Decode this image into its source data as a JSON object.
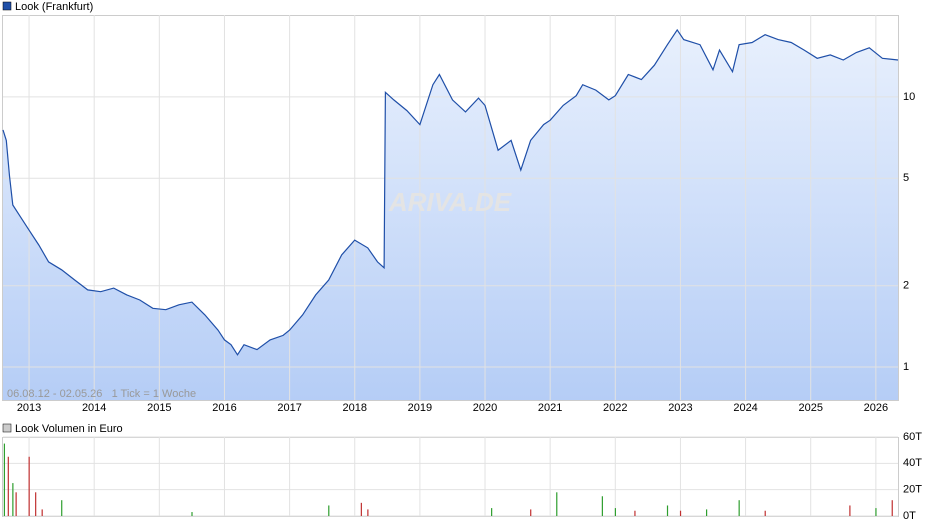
{
  "chart_data": [
    {
      "type": "line",
      "title": "Look (Frankfurt)",
      "color": "#1f4fa8",
      "fill_top": "#e8f0fd",
      "fill_bottom": "#b5cdf6",
      "note": "06.08.12 - 02.05.26   1 Tick = 1 Woche",
      "watermark": "ARIVA.DE",
      "log_scale": true,
      "grid": true,
      "x": [
        2012.6,
        2012.65,
        2012.7,
        2012.75,
        2012.85,
        2013.0,
        2013.15,
        2013.3,
        2013.5,
        2013.7,
        2013.9,
        2014.1,
        2014.3,
        2014.5,
        2014.7,
        2014.9,
        2015.1,
        2015.3,
        2015.5,
        2015.7,
        2015.9,
        2016.0,
        2016.1,
        2016.2,
        2016.3,
        2016.5,
        2016.7,
        2016.9,
        2017.0,
        2017.2,
        2017.4,
        2017.6,
        2017.8,
        2018.0,
        2018.2,
        2018.35,
        2018.45,
        2018.47,
        2018.6,
        2018.8,
        2019.0,
        2019.2,
        2019.3,
        2019.5,
        2019.7,
        2019.9,
        2020.0,
        2020.2,
        2020.4,
        2020.55,
        2020.7,
        2020.9,
        2021.0,
        2021.2,
        2021.4,
        2021.5,
        2021.7,
        2021.9,
        2022.0,
        2022.2,
        2022.4,
        2022.6,
        2022.8,
        2022.95,
        2023.05,
        2023.3,
        2023.5,
        2023.6,
        2023.8,
        2023.9,
        2024.1,
        2024.3,
        2024.5,
        2024.7,
        2024.9,
        2025.1,
        2025.3,
        2025.5,
        2025.7,
        2025.9,
        2026.1,
        2026.34
      ],
      "values": [
        7.55,
        6.9,
        5.1,
        3.98,
        3.65,
        3.21,
        2.83,
        2.45,
        2.29,
        2.1,
        1.93,
        1.9,
        1.96,
        1.85,
        1.77,
        1.65,
        1.63,
        1.7,
        1.74,
        1.56,
        1.37,
        1.26,
        1.21,
        1.11,
        1.21,
        1.16,
        1.26,
        1.31,
        1.37,
        1.56,
        1.85,
        2.1,
        2.6,
        2.95,
        2.76,
        2.45,
        2.33,
        10.4,
        9.75,
        8.9,
        7.9,
        11.1,
        12.1,
        9.75,
        8.8,
        9.9,
        9.3,
        6.35,
        6.9,
        5.36,
        6.9,
        7.9,
        8.2,
        9.3,
        10.1,
        11.1,
        10.6,
        9.75,
        10.1,
        12.1,
        11.6,
        13.1,
        15.6,
        17.7,
        16.3,
        15.6,
        12.6,
        14.9,
        12.4,
        15.6,
        15.9,
        17.0,
        16.3,
        15.9,
        14.9,
        13.9,
        14.3,
        13.7,
        14.6,
        15.2,
        13.9,
        13.7
      ],
      "xlim": [
        2012.6,
        2026.34
      ],
      "xticks": [
        2013,
        2014,
        2015,
        2016,
        2017,
        2018,
        2019,
        2020,
        2021,
        2022,
        2023,
        2024,
        2025,
        2026
      ],
      "ylim": [
        0.755,
        20.1
      ],
      "yticks": [
        1,
        2,
        5,
        10
      ]
    },
    {
      "type": "bar",
      "title": "Look Volumen in Euro",
      "grid": true,
      "x": [
        2012.62,
        2012.68,
        2012.75,
        2012.8,
        2013.0,
        2013.1,
        2013.2,
        2013.5,
        2015.5,
        2017.6,
        2018.1,
        2018.2,
        2020.1,
        2020.7,
        2021.1,
        2021.8,
        2022.0,
        2022.3,
        2022.8,
        2023.0,
        2023.4,
        2023.9,
        2024.3,
        2025.6,
        2026.0,
        2026.25
      ],
      "values": [
        55,
        45,
        25,
        18,
        45,
        18,
        5,
        12,
        3,
        8,
        10,
        5,
        6,
        5,
        18,
        15,
        6,
        4,
        8,
        4,
        5,
        12,
        4,
        8,
        6,
        12
      ],
      "colors": [
        "#2e9e2e",
        "#c03030",
        "#2e9e2e",
        "#c03030",
        "#c03030",
        "#c03030",
        "#c03030",
        "#2e9e2e",
        "#2e9e2e",
        "#2e9e2e",
        "#c03030",
        "#c03030",
        "#2e9e2e",
        "#c03030",
        "#2e9e2e",
        "#2e9e2e",
        "#2e9e2e",
        "#c03030",
        "#2e9e2e",
        "#c03030",
        "#2e9e2e",
        "#2e9e2e",
        "#c03030",
        "#c03030",
        "#2e9e2e",
        "#c03030"
      ],
      "xlim": [
        2012.6,
        2026.34
      ],
      "ylim": [
        0,
        60
      ],
      "yticks": [
        {
          "value": 0,
          "label": "0T"
        },
        {
          "value": 20,
          "label": "20T"
        },
        {
          "value": 40,
          "label": "40T"
        },
        {
          "value": 60,
          "label": "60T"
        }
      ]
    }
  ]
}
